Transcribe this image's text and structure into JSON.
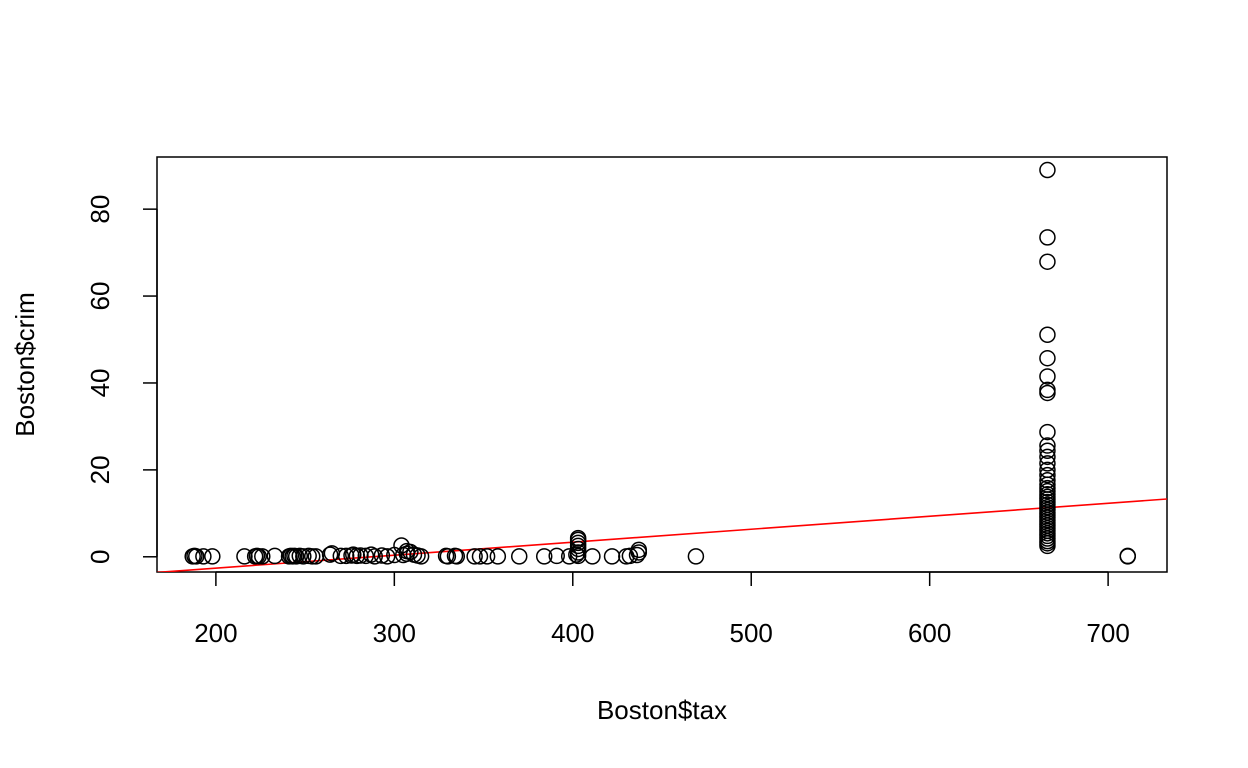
{
  "chart_data": {
    "type": "scatter",
    "title": "",
    "xlabel": "Boston$tax",
    "ylabel": "Boston$crim",
    "xlim": [
      167,
      733
    ],
    "ylim": [
      -3.5,
      92
    ],
    "x_ticks": [
      "200",
      "300",
      "400",
      "500",
      "600",
      "700"
    ],
    "y_ticks": [
      "0",
      "20",
      "40",
      "60",
      "80"
    ],
    "grid": false,
    "legend": "none",
    "point_color": "#000000",
    "regression_line": {
      "color": "#ff0000",
      "points": [
        [
          167,
          -3.6
        ],
        [
          733,
          13.3
        ]
      ]
    },
    "points": [
      [
        187,
        0.1
      ],
      [
        188,
        0.2
      ],
      [
        189,
        0.1
      ],
      [
        193,
        0.1
      ],
      [
        198,
        0.1
      ],
      [
        216,
        0.1
      ],
      [
        222,
        0.1
      ],
      [
        223,
        0.2
      ],
      [
        224,
        0.1
      ],
      [
        226,
        0.1
      ],
      [
        233,
        0.2
      ],
      [
        241,
        0.1
      ],
      [
        242,
        0.2
      ],
      [
        243,
        0.1
      ],
      [
        244,
        0.2
      ],
      [
        245,
        0.1
      ],
      [
        247,
        0.2
      ],
      [
        249,
        0.1
      ],
      [
        252,
        0.2
      ],
      [
        254,
        0.1
      ],
      [
        256,
        0.1
      ],
      [
        264,
        0.5
      ],
      [
        265,
        0.8
      ],
      [
        270,
        0.2
      ],
      [
        273,
        0.2
      ],
      [
        276,
        0.3
      ],
      [
        277,
        0.5
      ],
      [
        279,
        0.2
      ],
      [
        281,
        0.3
      ],
      [
        284,
        0.2
      ],
      [
        287,
        0.5
      ],
      [
        289,
        0.1
      ],
      [
        293,
        0.3
      ],
      [
        296,
        0.1
      ],
      [
        300,
        0.4
      ],
      [
        304,
        2.6
      ],
      [
        305,
        0.4
      ],
      [
        307,
        1.3
      ],
      [
        307,
        0.7
      ],
      [
        309,
        1.1
      ],
      [
        311,
        0.5
      ],
      [
        313,
        0.3
      ],
      [
        315,
        0.1
      ],
      [
        329,
        0.2
      ],
      [
        330,
        0.1
      ],
      [
        334,
        0.2
      ],
      [
        335,
        0.1
      ],
      [
        345,
        0.1
      ],
      [
        348,
        0.1
      ],
      [
        352,
        0.1
      ],
      [
        358,
        0.1
      ],
      [
        370,
        0.1
      ],
      [
        384,
        0.1
      ],
      [
        391,
        0.2
      ],
      [
        398,
        0.1
      ],
      [
        402,
        0.5
      ],
      [
        403,
        1.0
      ],
      [
        403,
        1.8
      ],
      [
        403,
        2.5
      ],
      [
        403,
        3.2
      ],
      [
        403,
        3.9
      ],
      [
        403,
        4.3
      ],
      [
        403,
        0.2
      ],
      [
        411,
        0.1
      ],
      [
        422,
        0.1
      ],
      [
        430,
        0.1
      ],
      [
        432,
        0.2
      ],
      [
        436,
        0.4
      ],
      [
        437,
        1.0
      ],
      [
        437,
        1.6
      ],
      [
        469,
        0.1
      ],
      [
        666,
        2.5
      ],
      [
        666,
        3.1
      ],
      [
        666,
        3.6
      ],
      [
        666,
        4.2
      ],
      [
        666,
        4.8
      ],
      [
        666,
        5.4
      ],
      [
        666,
        6.0
      ],
      [
        666,
        6.6
      ],
      [
        666,
        7.2
      ],
      [
        666,
        7.8
      ],
      [
        666,
        8.4
      ],
      [
        666,
        9.0
      ],
      [
        666,
        9.6
      ],
      [
        666,
        10.2
      ],
      [
        666,
        10.8
      ],
      [
        666,
        11.4
      ],
      [
        666,
        12.0
      ],
      [
        666,
        12.6
      ],
      [
        666,
        13.2
      ],
      [
        666,
        13.8
      ],
      [
        666,
        14.4
      ],
      [
        666,
        15.1
      ],
      [
        666,
        15.8
      ],
      [
        666,
        16.6
      ],
      [
        666,
        17.6
      ],
      [
        666,
        18.8
      ],
      [
        666,
        20.0
      ],
      [
        666,
        21.5
      ],
      [
        666,
        23.0
      ],
      [
        666,
        24.4
      ],
      [
        666,
        25.6
      ],
      [
        666,
        28.7
      ],
      [
        666,
        37.7
      ],
      [
        666,
        38.4
      ],
      [
        666,
        41.5
      ],
      [
        666,
        45.7
      ],
      [
        666,
        51.1
      ],
      [
        666,
        67.9
      ],
      [
        666,
        73.5
      ],
      [
        666,
        89.0
      ],
      [
        711,
        0.1
      ],
      [
        711,
        0.2
      ]
    ]
  }
}
